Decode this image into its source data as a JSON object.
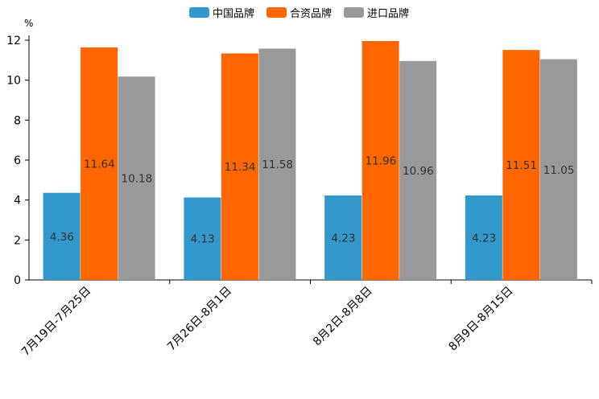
{
  "chart_data": {
    "type": "bar",
    "title": "",
    "xlabel": "",
    "ylabel": "%",
    "ylim": [
      0,
      12
    ],
    "yticks": [
      0,
      2,
      4,
      6,
      8,
      10,
      12
    ],
    "grid": false,
    "legend_position": "top-center",
    "categories": [
      "7月19日-7月25日",
      "7月26日-8月1日",
      "8月2日-8月8日",
      "8月9日-8月15日"
    ],
    "series": [
      {
        "name": "中国品牌",
        "color": "#3399cc",
        "values": [
          4.36,
          4.13,
          4.23,
          4.23
        ]
      },
      {
        "name": "合资品牌",
        "color": "#ff6600",
        "values": [
          11.64,
          11.34,
          11.96,
          11.51
        ]
      },
      {
        "name": "进口品牌",
        "color": "#999999",
        "values": [
          10.18,
          11.58,
          10.96,
          11.05
        ]
      }
    ]
  }
}
